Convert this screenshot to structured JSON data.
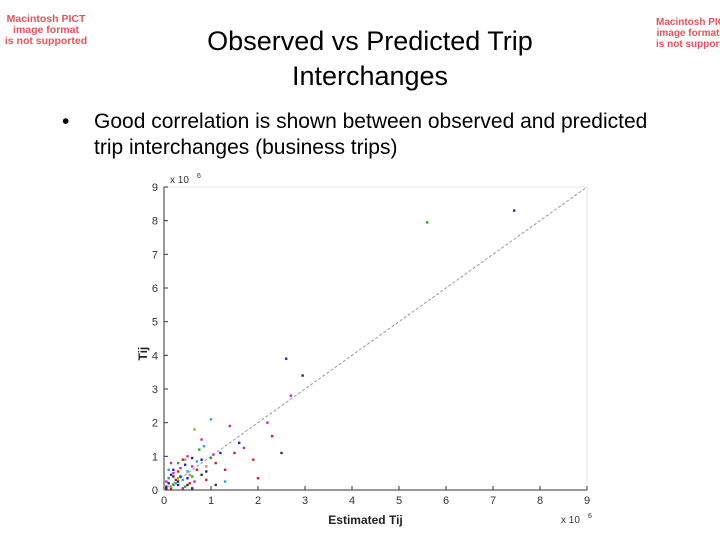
{
  "slide": {
    "title_line1": "Observed vs Predicted Trip",
    "title_line2": "Interchanges",
    "bullet": "Good correlation is shown between observed and predicted trip interchanges (business trips)",
    "bullet_marker": "•",
    "placeholder_left": [
      "Macintosh PICT",
      "image format",
      "is not supported"
    ],
    "placeholder_right": [
      "Macintosh PICT",
      "image format",
      "is not supported"
    ],
    "placeholder_color": "#e8505b"
  },
  "chart_data": {
    "type": "scatter",
    "xlabel": "Estimated Tij",
    "ylabel": "Tij",
    "x_exponent": "x 10",
    "x_exponent_power": "6",
    "y_exponent": "x 10",
    "y_exponent_power": "6",
    "xlim": [
      0,
      9
    ],
    "ylim": [
      0,
      9
    ],
    "x_ticks": [
      "0",
      "1",
      "2",
      "3",
      "4",
      "5",
      "6",
      "7",
      "8",
      "9"
    ],
    "y_ticks": [
      "0",
      "1",
      "2",
      "3",
      "4",
      "5",
      "6",
      "7",
      "8",
      "9"
    ],
    "grid": false,
    "reference_line": {
      "from": [
        0,
        0
      ],
      "to": [
        9,
        9
      ],
      "style": "dashed"
    },
    "series_colors": [
      "#2222cc",
      "#cc2222",
      "#22aa22",
      "#cc22cc",
      "#22aacc",
      "#aaaa22",
      "#333333"
    ],
    "series": [
      {
        "color_index": 0,
        "points": [
          [
            7.45,
            8.3
          ],
          [
            2.6,
            3.9
          ],
          [
            0.2,
            0.6
          ],
          [
            0.5,
            0.35
          ],
          [
            0.1,
            0.2
          ],
          [
            0.3,
            0.15
          ],
          [
            1.2,
            1.1
          ],
          [
            0.8,
            0.9
          ],
          [
            0.35,
            0.4
          ],
          [
            0.05,
            0.1
          ],
          [
            0.6,
            0.05
          ],
          [
            0.9,
            0.55
          ],
          [
            1.6,
            1.4
          ],
          [
            0.15,
            0.45
          ],
          [
            0.45,
            0.75
          ]
        ]
      },
      {
        "color_index": 1,
        "points": [
          [
            2.3,
            1.6
          ],
          [
            1.5,
            1.1
          ],
          [
            1.1,
            0.8
          ],
          [
            0.7,
            0.6
          ],
          [
            0.4,
            0.9
          ],
          [
            0.25,
            0.3
          ],
          [
            0.55,
            0.2
          ],
          [
            1.9,
            0.9
          ],
          [
            0.15,
            0.05
          ],
          [
            0.9,
            0.3
          ],
          [
            2.0,
            0.35
          ],
          [
            0.3,
            0.55
          ],
          [
            1.3,
            0.6
          ]
        ]
      },
      {
        "color_index": 2,
        "points": [
          [
            5.6,
            7.95
          ],
          [
            0.3,
            0.8
          ],
          [
            0.6,
            0.4
          ],
          [
            0.2,
            0.15
          ],
          [
            1.0,
            0.95
          ],
          [
            0.45,
            0.1
          ],
          [
            0.1,
            0.35
          ],
          [
            0.75,
            1.2
          ]
        ]
      },
      {
        "color_index": 3,
        "points": [
          [
            2.7,
            2.8
          ],
          [
            2.2,
            2.0
          ],
          [
            1.4,
            1.9
          ],
          [
            0.8,
            1.5
          ],
          [
            0.5,
            1.0
          ],
          [
            0.35,
            0.65
          ],
          [
            0.2,
            0.5
          ],
          [
            1.7,
            1.25
          ],
          [
            0.6,
            0.7
          ],
          [
            0.05,
            0.25
          ],
          [
            0.4,
            0.05
          ],
          [
            1.05,
            1.05
          ],
          [
            0.65,
            0.25
          ],
          [
            0.15,
            0.8
          ]
        ]
      },
      {
        "color_index": 4,
        "points": [
          [
            1.0,
            2.1
          ],
          [
            0.85,
            1.3
          ],
          [
            0.5,
            0.55
          ],
          [
            0.25,
            0.2
          ],
          [
            0.7,
            0.85
          ],
          [
            0.1,
            0.6
          ],
          [
            0.4,
            0.3
          ],
          [
            1.3,
            0.25
          ]
        ]
      },
      {
        "color_index": 5,
        "points": [
          [
            0.45,
            0.9
          ],
          [
            0.65,
            1.8
          ],
          [
            0.3,
            0.35
          ],
          [
            0.15,
            0.1
          ],
          [
            0.9,
            0.7
          ],
          [
            0.55,
            0.45
          ]
        ]
      },
      {
        "color_index": 6,
        "points": [
          [
            2.95,
            3.4
          ],
          [
            0.5,
            0.15
          ],
          [
            0.3,
            0.25
          ],
          [
            0.8,
            0.45
          ],
          [
            0.2,
            0.4
          ],
          [
            1.1,
            0.15
          ],
          [
            0.6,
            0.95
          ],
          [
            0.05,
            0.05
          ],
          [
            2.5,
            1.1
          ]
        ]
      }
    ]
  }
}
